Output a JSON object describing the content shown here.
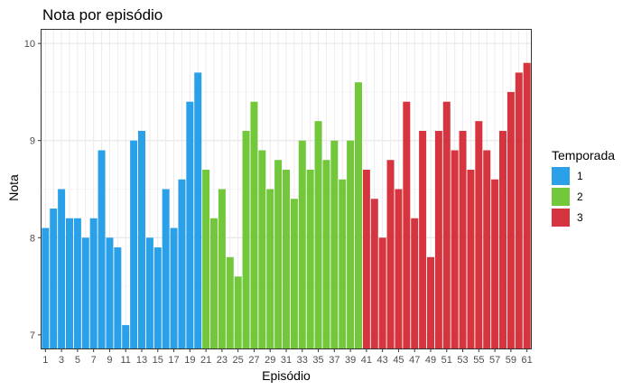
{
  "chart_data": {
    "type": "bar",
    "title": "Nota por episódio",
    "xlabel": "Episódio",
    "ylabel": "Nota",
    "ylim": [
      6.85,
      10.15
    ],
    "yticks": [
      7,
      8,
      9,
      10
    ],
    "x": [
      1,
      2,
      3,
      4,
      5,
      6,
      7,
      8,
      9,
      10,
      11,
      12,
      13,
      14,
      15,
      16,
      17,
      18,
      19,
      20,
      21,
      22,
      23,
      24,
      25,
      26,
      27,
      28,
      29,
      30,
      31,
      32,
      33,
      34,
      35,
      36,
      37,
      38,
      39,
      40,
      41,
      42,
      43,
      44,
      45,
      46,
      47,
      48,
      49,
      50,
      51,
      52,
      53,
      54,
      55,
      56,
      57,
      58,
      59,
      60,
      61
    ],
    "xticks": [
      1,
      3,
      5,
      7,
      9,
      11,
      13,
      15,
      17,
      19,
      21,
      23,
      25,
      27,
      29,
      31,
      33,
      35,
      37,
      39,
      41,
      43,
      45,
      47,
      49,
      51,
      53,
      55,
      57,
      59,
      61
    ],
    "grid": true,
    "legend": {
      "title": "Temporada",
      "position": "right"
    },
    "series": [
      {
        "name": "1",
        "color": "#2AA0E8",
        "x": [
          1,
          2,
          3,
          4,
          5,
          6,
          7,
          8,
          9,
          10,
          11,
          12,
          13,
          14,
          15,
          16,
          17,
          18,
          19,
          20
        ],
        "values": [
          8.1,
          8.3,
          8.5,
          8.2,
          8.2,
          8.0,
          8.2,
          8.9,
          8.0,
          7.9,
          7.1,
          9.0,
          9.1,
          8.0,
          7.9,
          8.5,
          8.1,
          8.6,
          9.4,
          9.7
        ]
      },
      {
        "name": "2",
        "color": "#72C83A",
        "x": [
          21,
          22,
          23,
          24,
          25,
          26,
          27,
          28,
          29,
          30,
          31,
          32,
          33,
          34,
          35,
          36,
          37,
          38,
          39,
          40
        ],
        "values": [
          8.7,
          8.2,
          8.5,
          7.8,
          7.6,
          9.1,
          9.4,
          8.9,
          8.5,
          8.8,
          8.7,
          8.4,
          9.0,
          8.7,
          9.2,
          8.8,
          9.0,
          8.6,
          9.0,
          9.6
        ]
      },
      {
        "name": "3",
        "color": "#D63540",
        "x": [
          41,
          42,
          43,
          44,
          45,
          46,
          47,
          48,
          49,
          50,
          51,
          52,
          53,
          54,
          55,
          56,
          57,
          58,
          59,
          60,
          61
        ],
        "values": [
          8.7,
          8.4,
          8.0,
          8.8,
          8.5,
          9.4,
          8.2,
          9.1,
          7.8,
          9.1,
          9.4,
          8.9,
          9.1,
          8.7,
          9.2,
          8.9,
          8.6,
          9.1,
          9.5,
          9.7,
          9.8
        ]
      }
    ]
  }
}
